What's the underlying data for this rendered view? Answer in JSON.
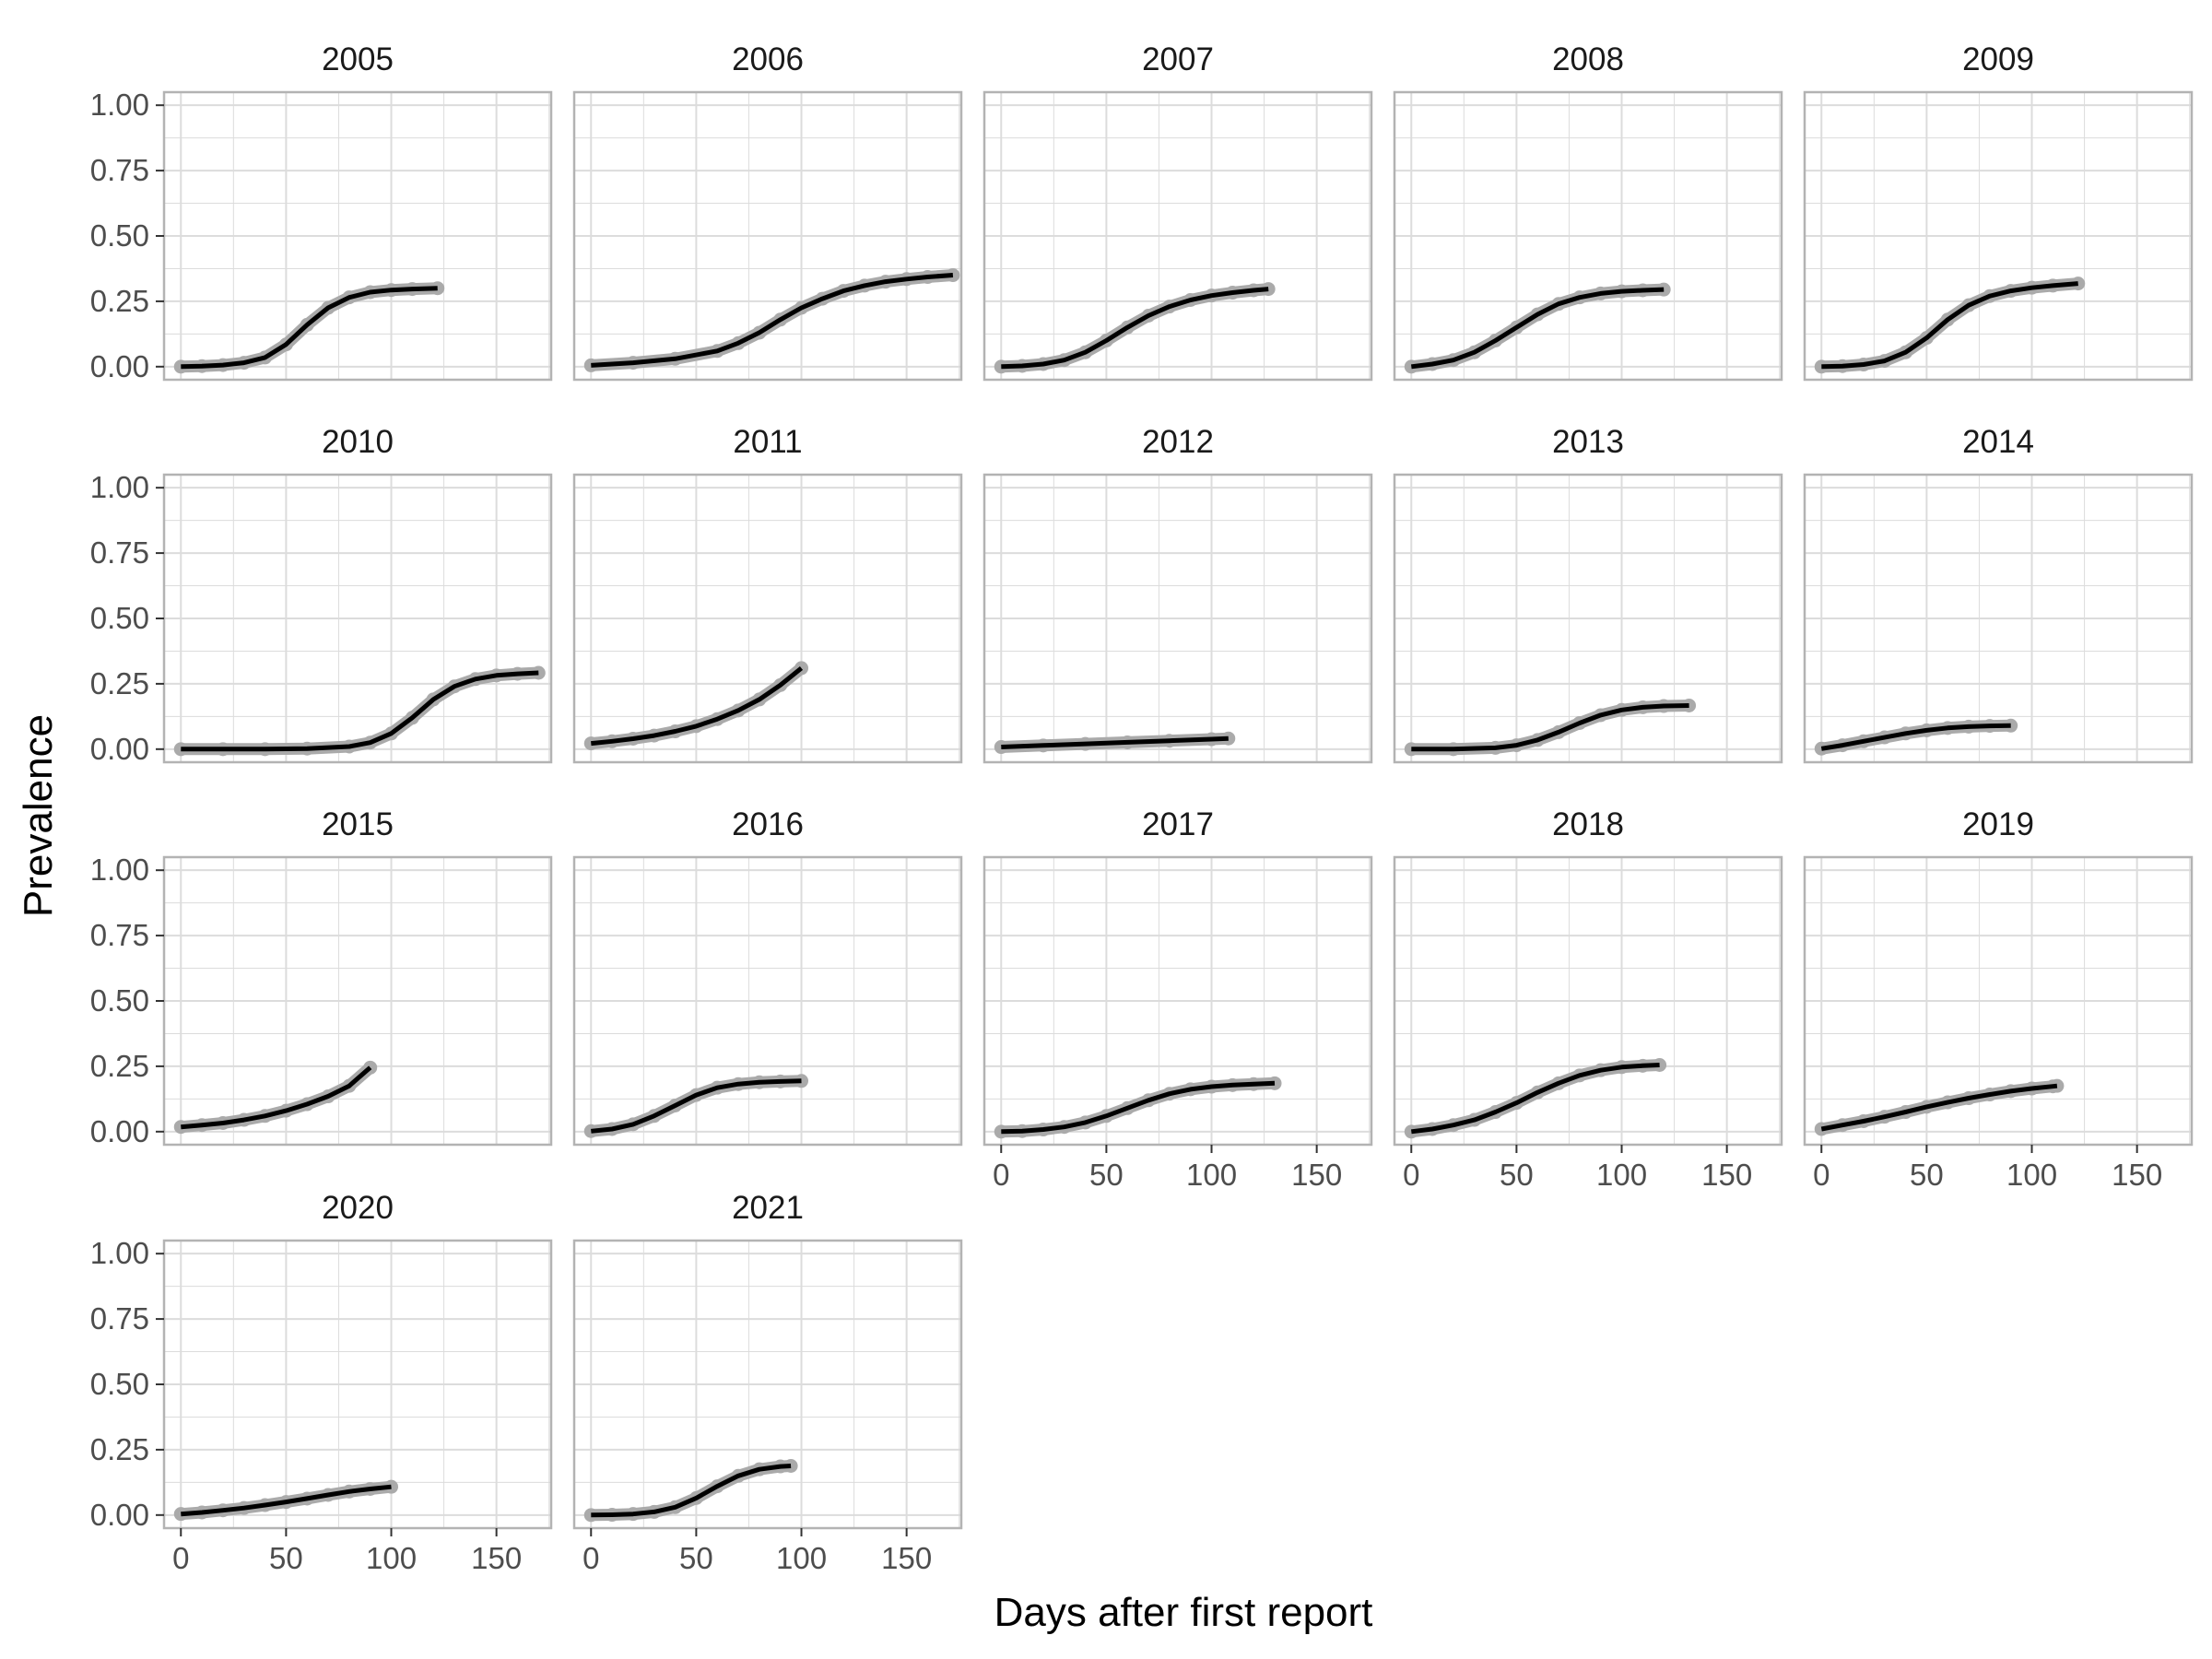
{
  "chart_data": {
    "type": "line",
    "layout": "facet_wrap",
    "xlabel": "Days after first report",
    "ylabel": "Prevalence",
    "xlim": [
      -8,
      176
    ],
    "ylim": [
      -0.05,
      1.05
    ],
    "x_ticks": [
      0,
      50,
      100,
      150
    ],
    "x_tick_labels": [
      "0",
      "50",
      "100",
      "150"
    ],
    "y_ticks": [
      0,
      0.25,
      0.5,
      0.75,
      1.0
    ],
    "y_tick_labels": [
      "0.00",
      "0.25",
      "0.50",
      "0.75",
      "1.00"
    ],
    "grid": true,
    "colors": {
      "points": "#aaaaaa",
      "fit": "#000000",
      "grid": "#dcdcdc",
      "panel_border": "#b3b3b3",
      "tick_text": "#4d4d4d"
    },
    "series_roles": {
      "points": "observed prevalence",
      "line": "fitted curve"
    },
    "panels": [
      {
        "year": "2005",
        "x": [
          0,
          10,
          20,
          30,
          40,
          50,
          60,
          70,
          80,
          90,
          100,
          110,
          122
        ],
        "y": [
          0.0,
          0.002,
          0.006,
          0.015,
          0.035,
          0.085,
          0.16,
          0.225,
          0.265,
          0.285,
          0.293,
          0.297,
          0.3
        ]
      },
      {
        "year": "2006",
        "x": [
          0,
          20,
          40,
          60,
          70,
          80,
          90,
          100,
          110,
          120,
          130,
          140,
          150,
          160,
          172
        ],
        "y": [
          0.005,
          0.015,
          0.03,
          0.06,
          0.09,
          0.13,
          0.18,
          0.225,
          0.26,
          0.29,
          0.31,
          0.325,
          0.335,
          0.343,
          0.35
        ]
      },
      {
        "year": "2007",
        "x": [
          0,
          10,
          20,
          30,
          40,
          50,
          60,
          70,
          80,
          90,
          100,
          110,
          120,
          127
        ],
        "y": [
          0.0,
          0.003,
          0.01,
          0.025,
          0.055,
          0.1,
          0.15,
          0.195,
          0.23,
          0.255,
          0.272,
          0.283,
          0.292,
          0.297
        ]
      },
      {
        "year": "2008",
        "x": [
          0,
          10,
          20,
          30,
          40,
          50,
          60,
          70,
          80,
          90,
          100,
          110,
          120
        ],
        "y": [
          0.0,
          0.01,
          0.025,
          0.055,
          0.1,
          0.15,
          0.2,
          0.24,
          0.265,
          0.28,
          0.288,
          0.292,
          0.295
        ]
      },
      {
        "year": "2009",
        "x": [
          0,
          10,
          20,
          30,
          40,
          50,
          60,
          70,
          80,
          90,
          100,
          110,
          122
        ],
        "y": [
          0.0,
          0.002,
          0.008,
          0.022,
          0.055,
          0.11,
          0.18,
          0.235,
          0.27,
          0.29,
          0.302,
          0.31,
          0.318
        ]
      },
      {
        "year": "2010",
        "x": [
          0,
          20,
          40,
          60,
          80,
          90,
          100,
          110,
          120,
          130,
          140,
          150,
          160,
          170
        ],
        "y": [
          0.0,
          0.0,
          0.0,
          0.002,
          0.01,
          0.025,
          0.06,
          0.12,
          0.19,
          0.24,
          0.268,
          0.282,
          0.288,
          0.292
        ]
      },
      {
        "year": "2011",
        "x": [
          0,
          10,
          20,
          30,
          40,
          50,
          60,
          70,
          80,
          90,
          100
        ],
        "y": [
          0.022,
          0.03,
          0.04,
          0.052,
          0.068,
          0.088,
          0.115,
          0.148,
          0.19,
          0.245,
          0.31
        ]
      },
      {
        "year": "2012",
        "x": [
          0,
          20,
          40,
          60,
          80,
          100,
          108
        ],
        "y": [
          0.008,
          0.014,
          0.02,
          0.026,
          0.032,
          0.038,
          0.041
        ]
      },
      {
        "year": "2013",
        "x": [
          0,
          20,
          40,
          50,
          60,
          70,
          80,
          90,
          100,
          110,
          120,
          132
        ],
        "y": [
          0.0,
          0.0,
          0.005,
          0.015,
          0.035,
          0.065,
          0.1,
          0.13,
          0.15,
          0.16,
          0.165,
          0.167
        ]
      },
      {
        "year": "2014",
        "x": [
          0,
          10,
          20,
          30,
          40,
          50,
          60,
          70,
          80,
          90
        ],
        "y": [
          0.002,
          0.015,
          0.03,
          0.045,
          0.06,
          0.072,
          0.081,
          0.086,
          0.089,
          0.09
        ]
      },
      {
        "year": "2015",
        "x": [
          0,
          10,
          20,
          30,
          40,
          50,
          60,
          70,
          80,
          90
        ],
        "y": [
          0.018,
          0.025,
          0.033,
          0.045,
          0.06,
          0.08,
          0.105,
          0.135,
          0.175,
          0.245
        ]
      },
      {
        "year": "2016",
        "x": [
          0,
          10,
          20,
          30,
          40,
          50,
          60,
          70,
          80,
          90,
          100
        ],
        "y": [
          0.002,
          0.01,
          0.028,
          0.06,
          0.1,
          0.14,
          0.168,
          0.182,
          0.189,
          0.192,
          0.194
        ]
      },
      {
        "year": "2017",
        "x": [
          0,
          10,
          20,
          30,
          40,
          50,
          60,
          70,
          80,
          90,
          100,
          110,
          120,
          130
        ],
        "y": [
          0.0,
          0.002,
          0.008,
          0.018,
          0.035,
          0.06,
          0.09,
          0.12,
          0.145,
          0.162,
          0.172,
          0.178,
          0.182,
          0.185
        ]
      },
      {
        "year": "2018",
        "x": [
          0,
          10,
          20,
          30,
          40,
          50,
          60,
          70,
          80,
          90,
          100,
          110,
          118
        ],
        "y": [
          0.0,
          0.01,
          0.025,
          0.045,
          0.075,
          0.11,
          0.15,
          0.185,
          0.215,
          0.235,
          0.247,
          0.252,
          0.255
        ]
      },
      {
        "year": "2019",
        "x": [
          0,
          10,
          20,
          30,
          40,
          50,
          60,
          70,
          80,
          90,
          100,
          110,
          112
        ],
        "y": [
          0.01,
          0.025,
          0.04,
          0.057,
          0.075,
          0.095,
          0.112,
          0.128,
          0.142,
          0.155,
          0.165,
          0.173,
          0.175
        ]
      },
      {
        "year": "2020",
        "x": [
          0,
          10,
          20,
          30,
          40,
          50,
          60,
          70,
          80,
          90,
          100
        ],
        "y": [
          0.004,
          0.01,
          0.018,
          0.027,
          0.038,
          0.05,
          0.063,
          0.077,
          0.09,
          0.1,
          0.108
        ]
      },
      {
        "year": "2021",
        "x": [
          0,
          10,
          20,
          30,
          40,
          50,
          60,
          70,
          80,
          90,
          95
        ],
        "y": [
          0.0,
          0.001,
          0.004,
          0.012,
          0.03,
          0.065,
          0.11,
          0.15,
          0.175,
          0.186,
          0.188
        ]
      }
    ]
  }
}
